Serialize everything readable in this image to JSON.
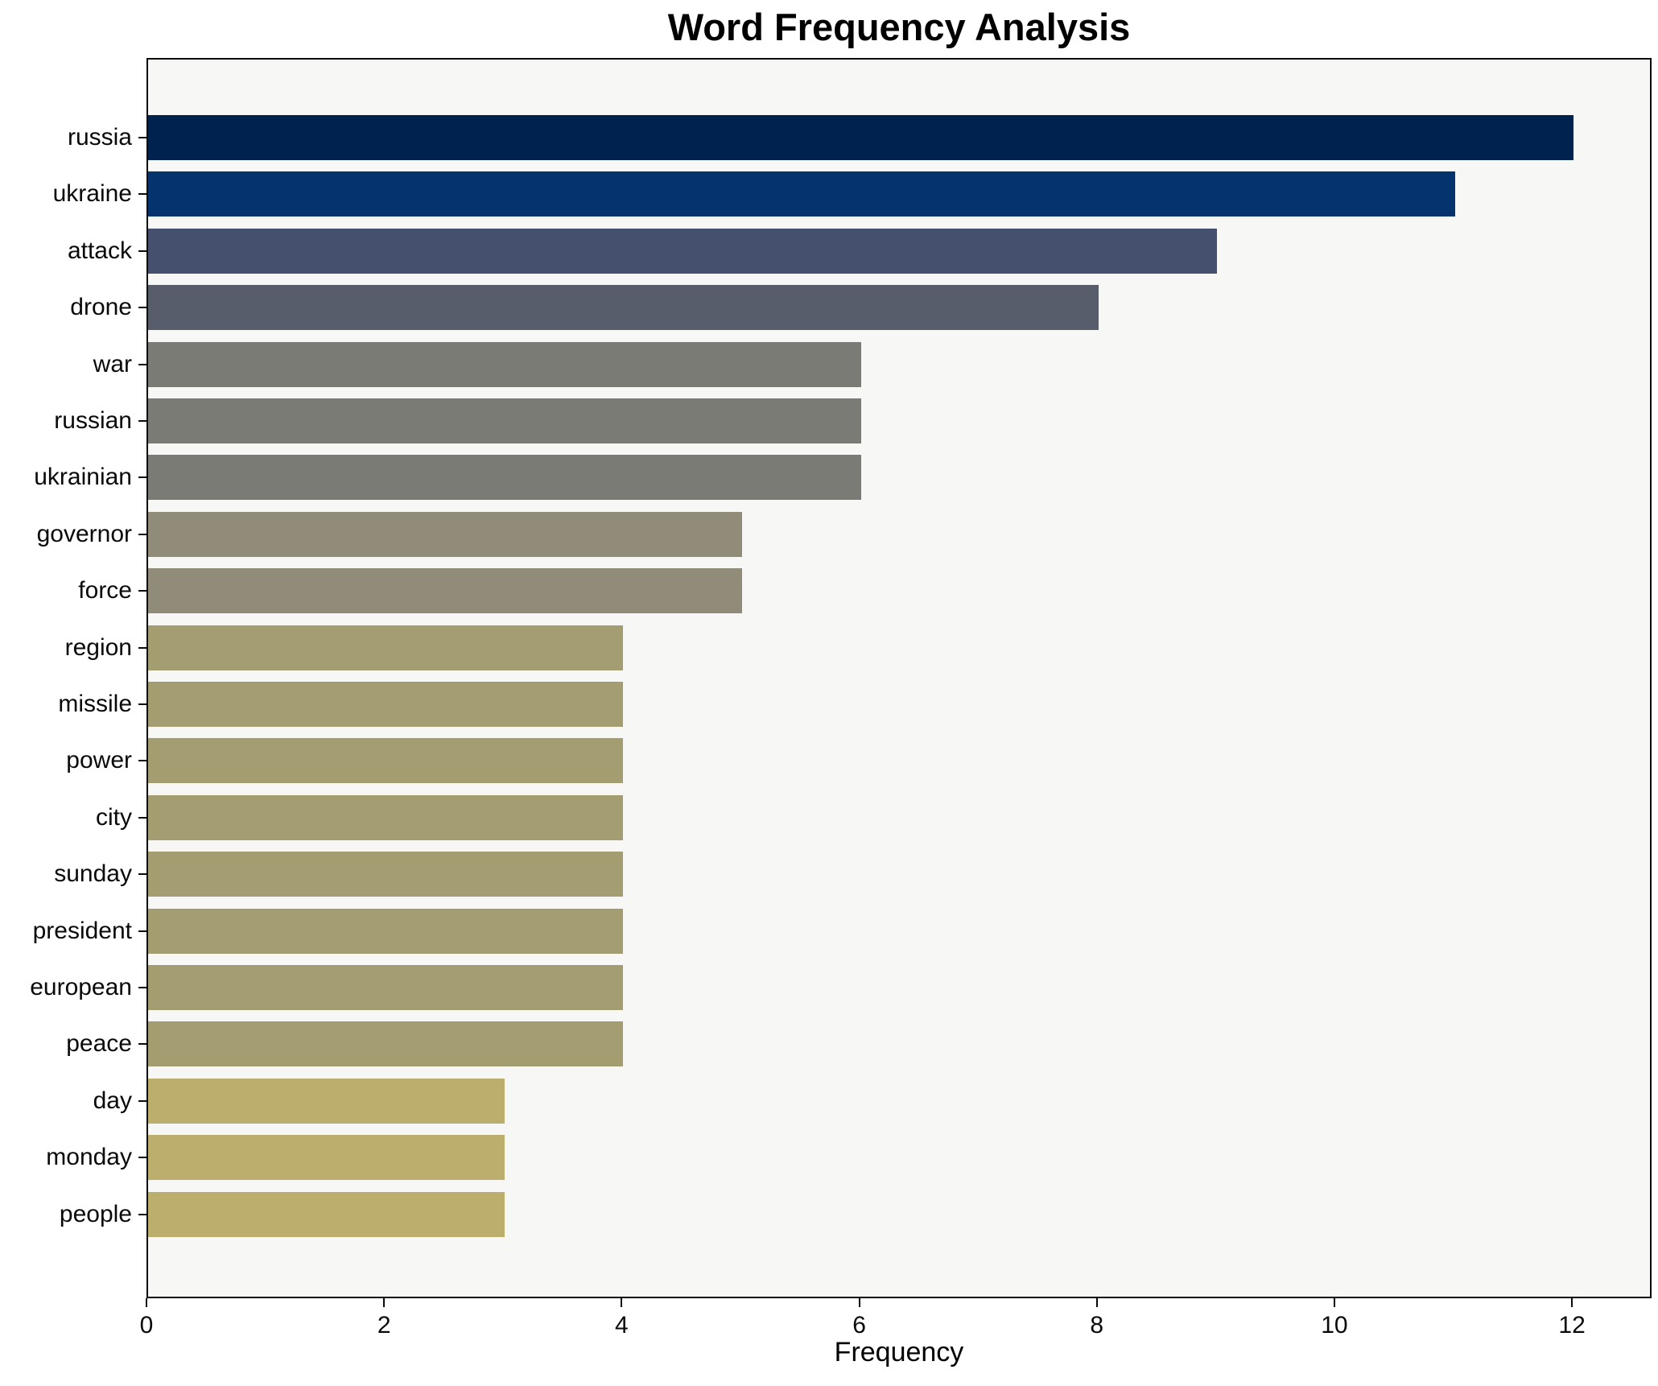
{
  "chart_data": {
    "type": "bar",
    "orientation": "horizontal",
    "title": "Word Frequency Analysis",
    "xlabel": "Frequency",
    "ylabel": "",
    "categories": [
      "russia",
      "ukraine",
      "attack",
      "drone",
      "war",
      "russian",
      "ukrainian",
      "governor",
      "force",
      "region",
      "missile",
      "power",
      "city",
      "sunday",
      "president",
      "european",
      "peace",
      "day",
      "monday",
      "people"
    ],
    "values": [
      12,
      11,
      9,
      8,
      6,
      6,
      6,
      5,
      5,
      4,
      4,
      4,
      4,
      4,
      4,
      4,
      4,
      3,
      3,
      3
    ],
    "bar_colors": [
      "#00224e",
      "#04336e",
      "#454f6e",
      "#575d6b",
      "#7b7b76",
      "#7b7b76",
      "#7b7b76",
      "#918c7a",
      "#918c7a",
      "#a59d72",
      "#a59d72",
      "#a59d72",
      "#a59d72",
      "#a59d72",
      "#a59d72",
      "#a59d72",
      "#a59d72",
      "#bcae6c",
      "#bcae6c",
      "#bcae6c"
    ],
    "colormap": "cividis",
    "xticks": [
      0,
      2,
      4,
      6,
      8,
      10,
      12
    ],
    "xlim": [
      0,
      12.67
    ],
    "grid": false,
    "legend": false,
    "plot_bg_color": "#f7f7f5",
    "figure_bg_color": "#ffffff",
    "spine_color": "#0a0a0a",
    "text_color": "#000000"
  }
}
